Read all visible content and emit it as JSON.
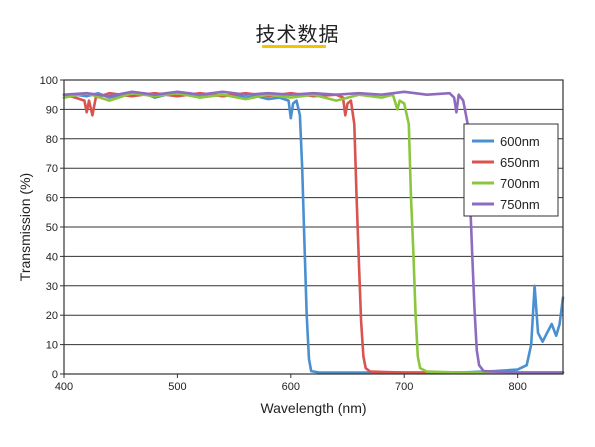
{
  "header": {
    "title": "技术数据"
  },
  "chart_data": {
    "type": "line",
    "title": "",
    "xlabel": "Wavelength (nm)",
    "ylabel": "Transmission (%)",
    "xlim": [
      400,
      840
    ],
    "ylim": [
      0,
      100
    ],
    "x_ticks": [
      400,
      500,
      600,
      700,
      800
    ],
    "y_ticks": [
      0,
      10,
      20,
      30,
      40,
      50,
      60,
      70,
      80,
      90,
      100
    ],
    "grid": "horizontal",
    "legend": "right",
    "series": [
      {
        "name": "600nm",
        "color": "#4a90d0",
        "points": [
          [
            400,
            94
          ],
          [
            410,
            95
          ],
          [
            420,
            94.5
          ],
          [
            430,
            95.5
          ],
          [
            440,
            94
          ],
          [
            450,
            95
          ],
          [
            460,
            94.5
          ],
          [
            470,
            95.5
          ],
          [
            480,
            94
          ],
          [
            490,
            95
          ],
          [
            500,
            94.5
          ],
          [
            510,
            95.5
          ],
          [
            520,
            94
          ],
          [
            530,
            95
          ],
          [
            540,
            94.5
          ],
          [
            550,
            95
          ],
          [
            560,
            94
          ],
          [
            570,
            94.5
          ],
          [
            580,
            93.5
          ],
          [
            590,
            94
          ],
          [
            598,
            93
          ],
          [
            600,
            87
          ],
          [
            602,
            92
          ],
          [
            605,
            93
          ],
          [
            608,
            88
          ],
          [
            610,
            70
          ],
          [
            612,
            45
          ],
          [
            614,
            20
          ],
          [
            616,
            5
          ],
          [
            618,
            1
          ],
          [
            625,
            0.5
          ],
          [
            650,
            0.5
          ],
          [
            700,
            0.5
          ],
          [
            750,
            0.5
          ],
          [
            780,
            1
          ],
          [
            800,
            1.5
          ],
          [
            808,
            3
          ],
          [
            812,
            10
          ],
          [
            815,
            30
          ],
          [
            818,
            14
          ],
          [
            822,
            11
          ],
          [
            826,
            14
          ],
          [
            830,
            17
          ],
          [
            834,
            13
          ],
          [
            837,
            17
          ],
          [
            840,
            26
          ]
        ]
      },
      {
        "name": "650nm",
        "color": "#d9534f",
        "points": [
          [
            400,
            95
          ],
          [
            410,
            94
          ],
          [
            418,
            93
          ],
          [
            420,
            89
          ],
          [
            422,
            93
          ],
          [
            425,
            88
          ],
          [
            428,
            94
          ],
          [
            440,
            95.5
          ],
          [
            460,
            94.5
          ],
          [
            480,
            95.5
          ],
          [
            500,
            94.5
          ],
          [
            520,
            95.5
          ],
          [
            540,
            94.5
          ],
          [
            560,
            95.5
          ],
          [
            580,
            94.5
          ],
          [
            600,
            95.5
          ],
          [
            620,
            94.5
          ],
          [
            640,
            95
          ],
          [
            646,
            94
          ],
          [
            648,
            88
          ],
          [
            650,
            92
          ],
          [
            653,
            93
          ],
          [
            656,
            85
          ],
          [
            658,
            60
          ],
          [
            660,
            38
          ],
          [
            662,
            18
          ],
          [
            664,
            6
          ],
          [
            666,
            2
          ],
          [
            670,
            0.8
          ],
          [
            700,
            0.5
          ],
          [
            750,
            0.5
          ],
          [
            800,
            0.5
          ],
          [
            840,
            0.5
          ]
        ]
      },
      {
        "name": "700nm",
        "color": "#8cc63f",
        "points": [
          [
            400,
            94
          ],
          [
            420,
            95.5
          ],
          [
            440,
            93
          ],
          [
            460,
            95.5
          ],
          [
            480,
            94.5
          ],
          [
            500,
            95.5
          ],
          [
            520,
            94
          ],
          [
            540,
            95
          ],
          [
            560,
            93.5
          ],
          [
            580,
            95
          ],
          [
            600,
            94
          ],
          [
            620,
            95
          ],
          [
            640,
            93
          ],
          [
            660,
            95
          ],
          [
            680,
            94
          ],
          [
            690,
            95
          ],
          [
            694,
            90
          ],
          [
            696,
            93
          ],
          [
            700,
            92
          ],
          [
            704,
            85
          ],
          [
            706,
            60
          ],
          [
            708,
            42
          ],
          [
            710,
            20
          ],
          [
            712,
            6
          ],
          [
            714,
            2
          ],
          [
            720,
            0.8
          ],
          [
            750,
            0.5
          ],
          [
            800,
            0.5
          ],
          [
            840,
            0.5
          ]
        ]
      },
      {
        "name": "750nm",
        "color": "#8e6bbf",
        "points": [
          [
            400,
            95
          ],
          [
            420,
            95.5
          ],
          [
            440,
            94.5
          ],
          [
            460,
            96
          ],
          [
            480,
            95
          ],
          [
            500,
            96
          ],
          [
            520,
            95
          ],
          [
            540,
            96
          ],
          [
            560,
            95
          ],
          [
            580,
            95.5
          ],
          [
            600,
            95
          ],
          [
            620,
            95.5
          ],
          [
            640,
            95
          ],
          [
            660,
            95.5
          ],
          [
            680,
            95
          ],
          [
            700,
            96
          ],
          [
            720,
            95
          ],
          [
            740,
            95.5
          ],
          [
            744,
            94
          ],
          [
            746,
            89
          ],
          [
            748,
            95
          ],
          [
            752,
            93
          ],
          [
            756,
            85
          ],
          [
            758,
            60
          ],
          [
            760,
            40
          ],
          [
            762,
            22
          ],
          [
            764,
            8
          ],
          [
            766,
            3
          ],
          [
            770,
            1
          ],
          [
            800,
            0.5
          ],
          [
            840,
            0.5
          ]
        ]
      }
    ]
  }
}
